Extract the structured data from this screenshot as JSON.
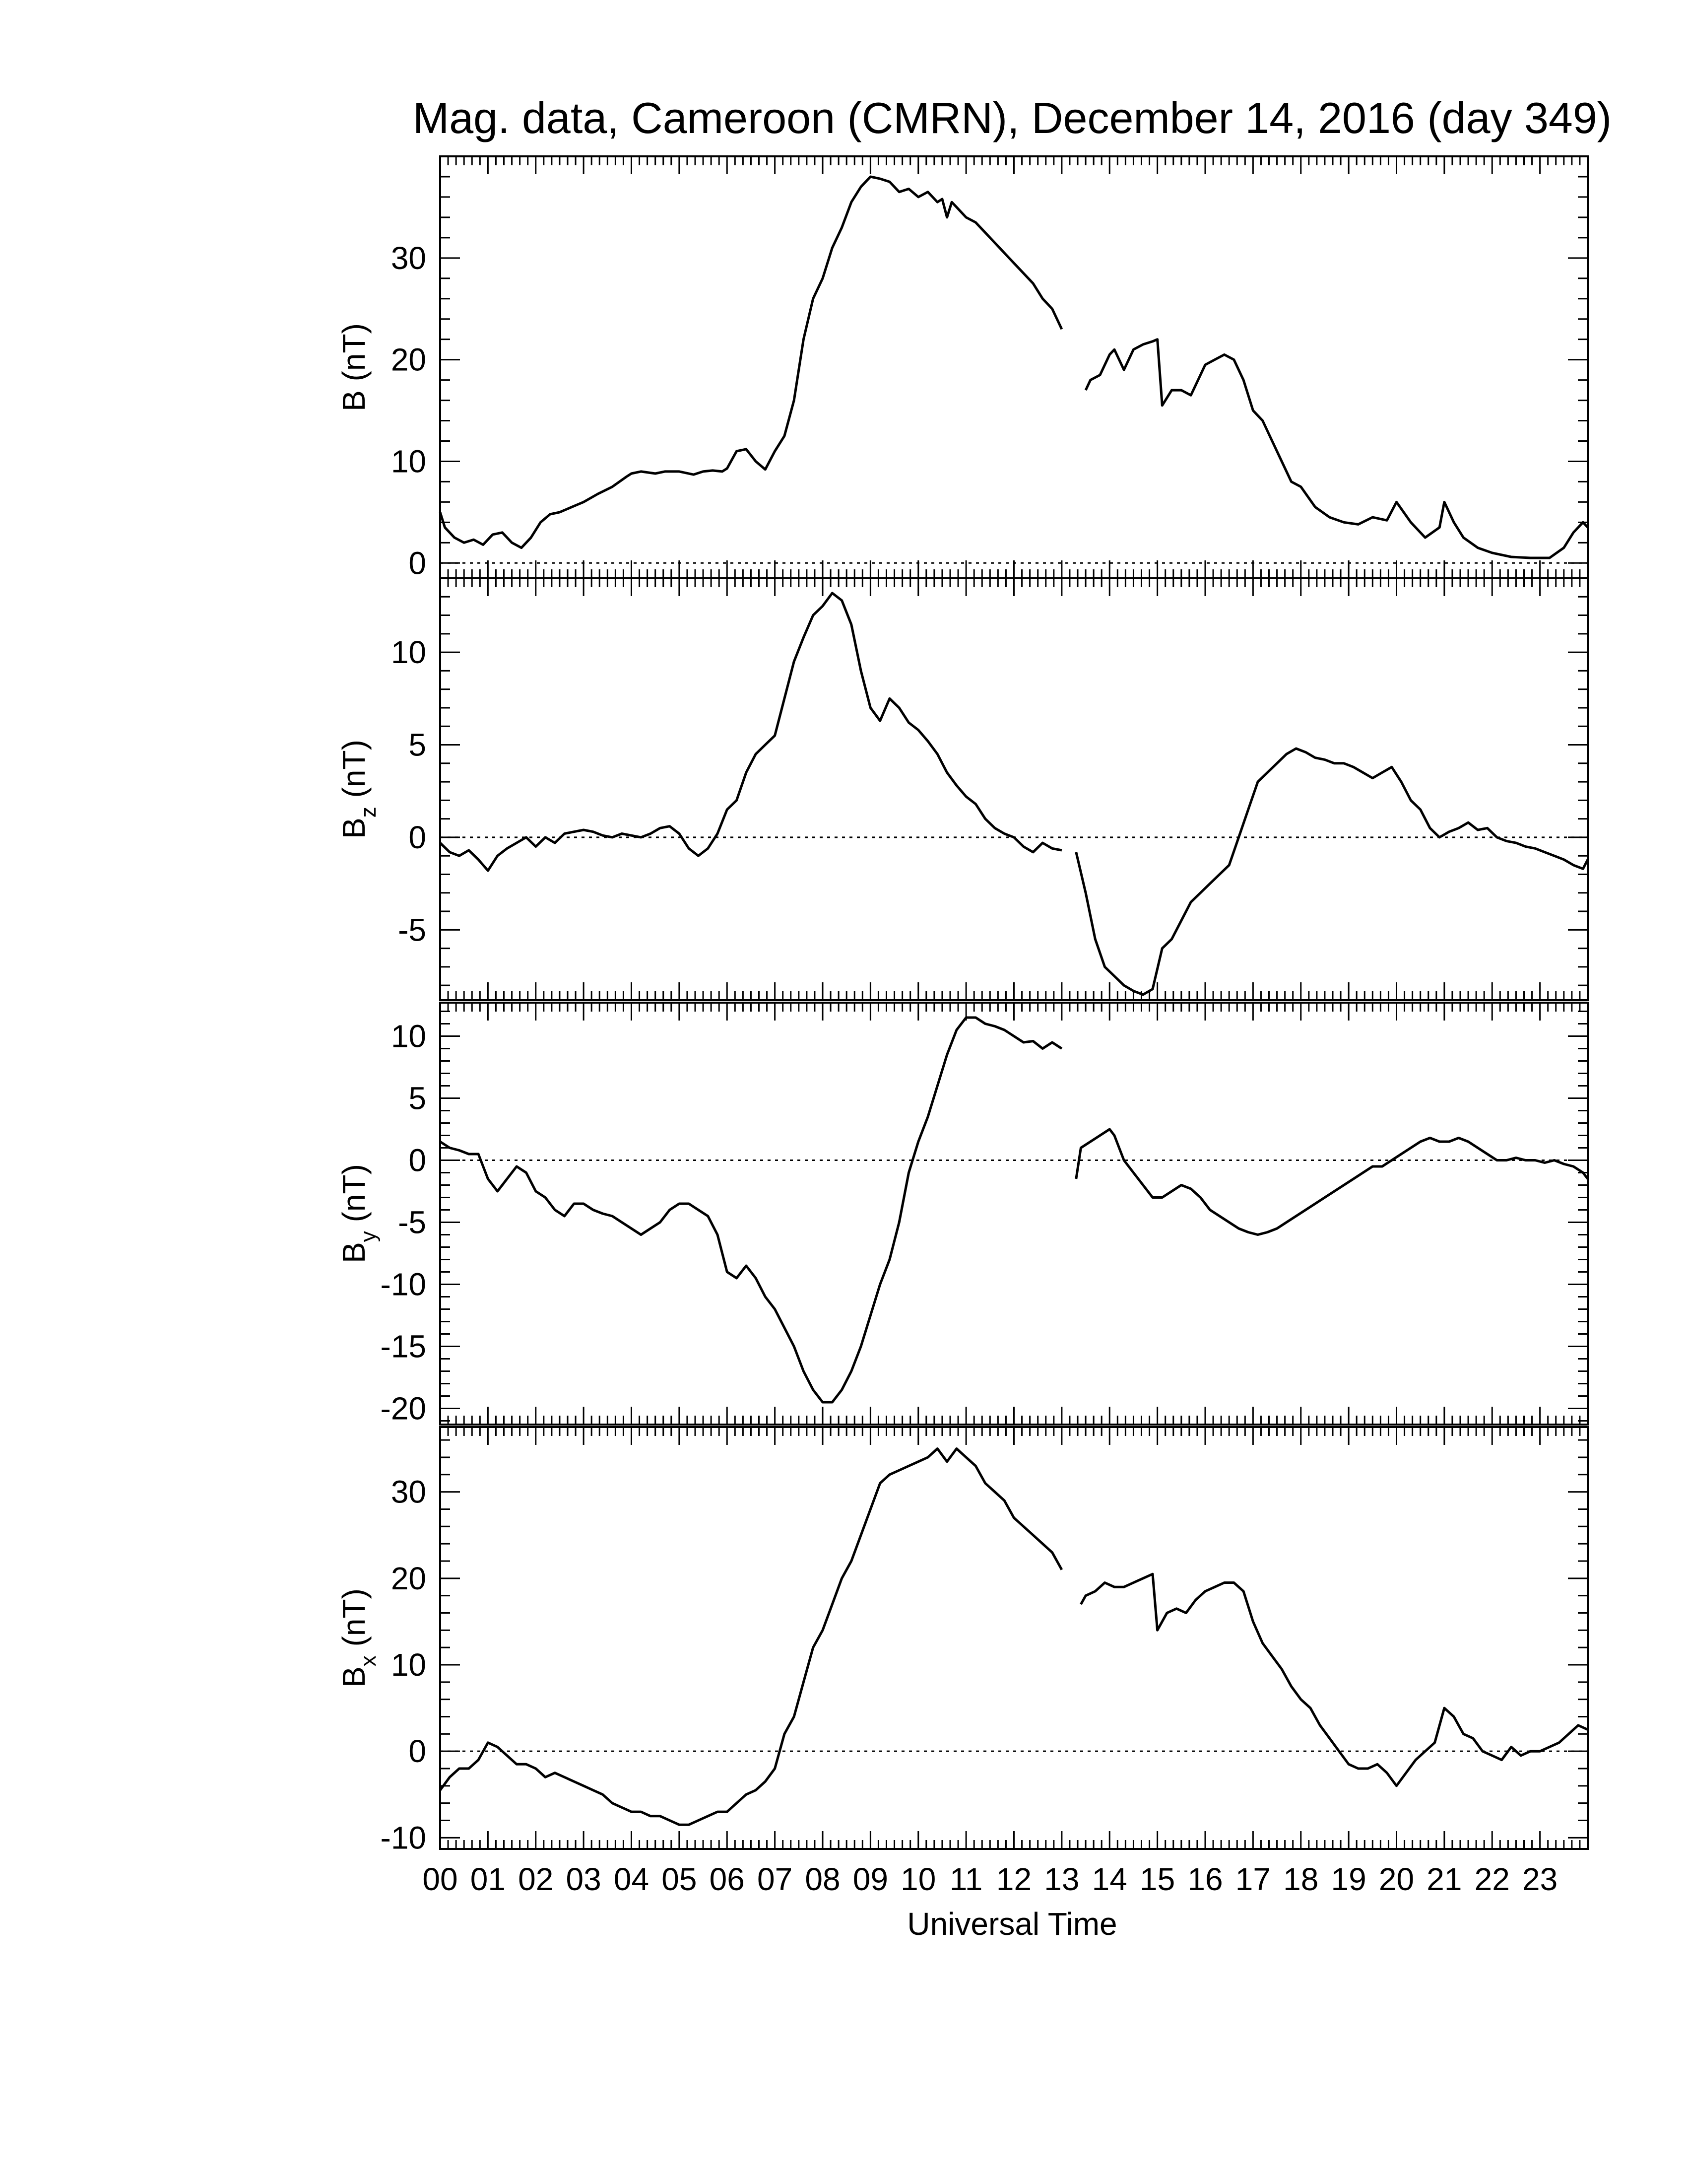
{
  "title": "Mag. data, Cameroon (CMRN), December 14, 2016 (day 349)",
  "xlabel": "Universal Time",
  "x_tick_labels": [
    "00",
    "01",
    "02",
    "03",
    "04",
    "05",
    "06",
    "07",
    "08",
    "09",
    "10",
    "11",
    "12",
    "13",
    "14",
    "15",
    "16",
    "17",
    "18",
    "19",
    "20",
    "21",
    "22",
    "23"
  ],
  "colors": {
    "line": "#000000",
    "zero_line": "#000000",
    "background": "#ffffff"
  },
  "chart_data": [
    {
      "type": "line",
      "panel": "B",
      "ylabel": "B (nT)",
      "ylabel_main": "B",
      "ylabel_sub": "",
      "ylabel_unit": " (nT)",
      "ylim": [
        -1.5,
        40
      ],
      "yticks": [
        0,
        10,
        20,
        30
      ],
      "xlim": [
        0,
        24
      ],
      "zero_line": true,
      "segments": [
        {
          "x": [
            0,
            0.1,
            0.3,
            0.5,
            0.7,
            0.9,
            1.1,
            1.3,
            1.5,
            1.7,
            1.9,
            2.1,
            2.3,
            2.5,
            2.8,
            3.0,
            3.3,
            3.6,
            3.9,
            4.0,
            4.2,
            4.5,
            4.7,
            5.0,
            5.3,
            5.5,
            5.7,
            5.9,
            6.0,
            6.2,
            6.4,
            6.6,
            6.8,
            7.0,
            7.2,
            7.4,
            7.6,
            7.8,
            8.0,
            8.2,
            8.4,
            8.6,
            8.8,
            9.0,
            9.2,
            9.4,
            9.6,
            9.8,
            10.0,
            10.2,
            10.4,
            10.5,
            10.6,
            10.7,
            10.8,
            11.0,
            11.2,
            11.4,
            11.6,
            11.8,
            12.0,
            12.2,
            12.4,
            12.6,
            12.8,
            13.0
          ],
          "y": [
            5,
            3.5,
            2.5,
            2.0,
            2.3,
            1.8,
            2.8,
            3.0,
            2.0,
            1.5,
            2.5,
            4.0,
            4.8,
            5.0,
            5.6,
            6.0,
            6.8,
            7.5,
            8.5,
            8.8,
            9.0,
            8.8,
            9.0,
            9.0,
            8.7,
            9.0,
            9.1,
            9.0,
            9.3,
            11.0,
            11.2,
            10.0,
            9.2,
            11.0,
            12.5,
            16.0,
            22.0,
            26.0,
            28.0,
            31.0,
            33.0,
            35.5,
            37.0,
            38.0,
            37.8,
            37.5,
            36.5,
            36.8,
            36.0,
            36.5,
            35.5,
            35.8,
            34.0,
            35.5,
            35.0,
            34.0,
            33.5,
            32.5,
            31.5,
            30.5,
            29.5,
            28.5,
            27.5,
            26.0,
            25.0,
            23.0
          ]
        },
        {
          "x": [
            13.5,
            13.6,
            13.8,
            14.0,
            14.1,
            14.3,
            14.5,
            14.7,
            14.9,
            15.0,
            15.1,
            15.3,
            15.5,
            15.7,
            15.9,
            16.0,
            16.2,
            16.4,
            16.6,
            16.8,
            17.0,
            17.2,
            17.4,
            17.6,
            17.8,
            18.0,
            18.3,
            18.6,
            18.9,
            19.2,
            19.5,
            19.8,
            20.0,
            20.3,
            20.6,
            20.9,
            21.0,
            21.2,
            21.4,
            21.7,
            22.0,
            22.4,
            22.8,
            23.2,
            23.5,
            23.7,
            23.9,
            24.0
          ],
          "y": [
            17.0,
            18.0,
            18.5,
            20.5,
            21.0,
            19.0,
            21.0,
            21.5,
            21.8,
            22.0,
            15.5,
            17.0,
            17.0,
            16.5,
            18.5,
            19.5,
            20.0,
            20.5,
            20.0,
            18.0,
            15.0,
            14.0,
            12.0,
            10.0,
            8.0,
            7.5,
            5.5,
            4.5,
            4.0,
            3.8,
            4.5,
            4.2,
            6.0,
            4.0,
            2.5,
            3.5,
            6.0,
            4.0,
            2.5,
            1.5,
            1.0,
            0.6,
            0.5,
            0.5,
            1.5,
            3.0,
            4.0,
            3.5
          ]
        }
      ]
    },
    {
      "type": "line",
      "panel": "Bz",
      "ylabel": "Bz (nT)",
      "ylabel_main": "B",
      "ylabel_sub": "z",
      "ylabel_unit": " (nT)",
      "ylim": [
        -8.8,
        14
      ],
      "yticks": [
        -5,
        0,
        5,
        10
      ],
      "xlim": [
        0,
        24
      ],
      "zero_line": true,
      "segments": [
        {
          "x": [
            0,
            0.2,
            0.4,
            0.6,
            0.8,
            1.0,
            1.2,
            1.4,
            1.6,
            1.8,
            2.0,
            2.2,
            2.4,
            2.6,
            2.8,
            3.0,
            3.2,
            3.4,
            3.6,
            3.8,
            4.0,
            4.2,
            4.4,
            4.6,
            4.8,
            5.0,
            5.2,
            5.4,
            5.6,
            5.8,
            6.0,
            6.2,
            6.4,
            6.6,
            6.8,
            7.0,
            7.2,
            7.4,
            7.6,
            7.8,
            8.0,
            8.2,
            8.4,
            8.6,
            8.8,
            9.0,
            9.2,
            9.4,
            9.6,
            9.8,
            10.0,
            10.2,
            10.4,
            10.6,
            10.8,
            11.0,
            11.2,
            11.4,
            11.6,
            11.8,
            12.0,
            12.2,
            12.4,
            12.6,
            12.8,
            13.0
          ],
          "y": [
            -0.3,
            -0.8,
            -1.0,
            -0.7,
            -1.2,
            -1.8,
            -1.0,
            -0.6,
            -0.3,
            0,
            -0.5,
            0,
            -0.3,
            0.2,
            0.3,
            0.4,
            0.3,
            0.1,
            0,
            0.2,
            0.1,
            0,
            0.2,
            0.5,
            0.6,
            0.2,
            -0.6,
            -1.0,
            -0.6,
            0.2,
            1.5,
            2.0,
            3.5,
            4.5,
            5.0,
            5.5,
            7.5,
            9.5,
            10.8,
            12.0,
            12.5,
            13.2,
            12.8,
            11.5,
            9.0,
            7.0,
            6.3,
            7.5,
            7.0,
            6.2,
            5.8,
            5.2,
            4.5,
            3.5,
            2.8,
            2.2,
            1.8,
            1.0,
            0.5,
            0.2,
            0,
            -0.5,
            -0.8,
            -0.3,
            -0.6,
            -0.7
          ]
        },
        {
          "x": [
            13.3,
            13.5,
            13.7,
            13.9,
            14.1,
            14.3,
            14.5,
            14.7,
            14.9,
            15.1,
            15.3,
            15.5,
            15.7,
            15.9,
            16.1,
            16.3,
            16.5,
            16.7,
            16.9,
            17.1,
            17.3,
            17.5,
            17.7,
            17.9,
            18.1,
            18.3,
            18.5,
            18.7,
            18.9,
            19.1,
            19.3,
            19.5,
            19.7,
            19.9,
            20.1,
            20.3,
            20.5,
            20.7,
            20.9,
            21.1,
            21.3,
            21.5,
            21.7,
            21.9,
            22.1,
            22.3,
            22.5,
            22.7,
            22.9,
            23.1,
            23.3,
            23.5,
            23.7,
            23.9,
            24.0
          ],
          "y": [
            -0.8,
            -3.0,
            -5.5,
            -7.0,
            -7.5,
            -8.0,
            -8.3,
            -8.5,
            -8.2,
            -6.0,
            -5.5,
            -4.5,
            -3.5,
            -3.0,
            -2.5,
            -2.0,
            -1.5,
            0,
            1.5,
            3.0,
            3.5,
            4.0,
            4.5,
            4.8,
            4.6,
            4.3,
            4.2,
            4.0,
            4.0,
            3.8,
            3.5,
            3.2,
            3.5,
            3.8,
            3.0,
            2.0,
            1.5,
            0.5,
            0,
            0.3,
            0.5,
            0.8,
            0.4,
            0.5,
            0,
            -0.2,
            -0.3,
            -0.5,
            -0.6,
            -0.8,
            -1.0,
            -1.2,
            -1.5,
            -1.7,
            -1.2
          ]
        }
      ]
    },
    {
      "type": "line",
      "panel": "By",
      "ylabel": "By (nT)",
      "ylabel_main": "B",
      "ylabel_sub": "y",
      "ylabel_unit": " (nT)",
      "ylim": [
        -21.3,
        12.7
      ],
      "yticks": [
        -20,
        -15,
        -10,
        -5,
        0,
        5,
        10
      ],
      "xlim": [
        0,
        24
      ],
      "zero_line": true,
      "segments": [
        {
          "x": [
            0,
            0.2,
            0.4,
            0.6,
            0.8,
            1.0,
            1.2,
            1.4,
            1.6,
            1.8,
            2.0,
            2.2,
            2.4,
            2.6,
            2.8,
            3.0,
            3.2,
            3.4,
            3.6,
            3.8,
            4.0,
            4.2,
            4.4,
            4.6,
            4.8,
            5.0,
            5.2,
            5.4,
            5.6,
            5.8,
            6.0,
            6.2,
            6.4,
            6.6,
            6.8,
            7.0,
            7.2,
            7.4,
            7.6,
            7.8,
            8.0,
            8.2,
            8.4,
            8.6,
            8.8,
            9.0,
            9.2,
            9.4,
            9.6,
            9.8,
            10.0,
            10.2,
            10.4,
            10.6,
            10.8,
            11.0,
            11.2,
            11.4,
            11.6,
            11.8,
            12.0,
            12.2,
            12.4,
            12.6,
            12.8,
            13.0
          ],
          "y": [
            1.5,
            1.0,
            0.8,
            0.5,
            0.5,
            -1.5,
            -2.5,
            -1.5,
            -0.5,
            -1.0,
            -2.5,
            -3.0,
            -4.0,
            -4.5,
            -3.5,
            -3.5,
            -4.0,
            -4.3,
            -4.5,
            -5.0,
            -5.5,
            -6.0,
            -5.5,
            -5.0,
            -4.0,
            -3.5,
            -3.5,
            -4.0,
            -4.5,
            -6.0,
            -9.0,
            -9.5,
            -8.5,
            -9.5,
            -11.0,
            -12.0,
            -13.5,
            -15.0,
            -17.0,
            -18.5,
            -19.5,
            -19.5,
            -18.5,
            -17.0,
            -15.0,
            -12.5,
            -10.0,
            -8.0,
            -5.0,
            -1.0,
            1.5,
            3.5,
            6.0,
            8.5,
            10.5,
            11.5,
            11.5,
            11.0,
            10.8,
            10.5,
            10.0,
            9.5,
            9.6,
            9.0,
            9.5,
            9.0
          ]
        },
        {
          "x": [
            13.3,
            13.4,
            13.6,
            13.8,
            14.0,
            14.1,
            14.3,
            14.5,
            14.7,
            14.9,
            15.1,
            15.3,
            15.5,
            15.7,
            15.9,
            16.1,
            16.3,
            16.5,
            16.7,
            16.9,
            17.1,
            17.3,
            17.5,
            17.7,
            17.9,
            18.1,
            18.3,
            18.5,
            18.7,
            18.9,
            19.1,
            19.3,
            19.5,
            19.7,
            19.9,
            20.1,
            20.3,
            20.5,
            20.7,
            20.9,
            21.1,
            21.3,
            21.5,
            21.7,
            21.9,
            22.1,
            22.3,
            22.5,
            22.7,
            22.9,
            23.1,
            23.3,
            23.5,
            23.7,
            23.9,
            24.0
          ],
          "y": [
            -1.5,
            1.0,
            1.5,
            2.0,
            2.5,
            2.0,
            0,
            -1.0,
            -2.0,
            -3.0,
            -3.0,
            -2.5,
            -2.0,
            -2.3,
            -3.0,
            -4.0,
            -4.5,
            -5.0,
            -5.5,
            -5.8,
            -6.0,
            -5.8,
            -5.5,
            -5.0,
            -4.5,
            -4.0,
            -3.5,
            -3.0,
            -2.5,
            -2.0,
            -1.5,
            -1.0,
            -0.5,
            -0.5,
            0,
            0.5,
            1.0,
            1.5,
            1.8,
            1.5,
            1.5,
            1.8,
            1.5,
            1.0,
            0.5,
            0,
            0,
            0.2,
            0,
            0,
            -0.2,
            0,
            -0.3,
            -0.5,
            -1.0,
            -1.5
          ]
        }
      ]
    },
    {
      "type": "line",
      "panel": "Bx",
      "ylabel": "Bx (nT)",
      "ylabel_main": "B",
      "ylabel_sub": "x",
      "ylabel_unit": " (nT)",
      "ylim": [
        -11.3,
        37.5
      ],
      "yticks": [
        -10,
        0,
        10,
        20,
        30
      ],
      "xlim": [
        0,
        24
      ],
      "zero_line": true,
      "segments": [
        {
          "x": [
            0,
            0.2,
            0.4,
            0.6,
            0.8,
            1.0,
            1.2,
            1.4,
            1.6,
            1.8,
            2.0,
            2.2,
            2.4,
            2.6,
            2.8,
            3.0,
            3.2,
            3.4,
            3.6,
            3.8,
            4.0,
            4.2,
            4.4,
            4.6,
            4.8,
            5.0,
            5.2,
            5.4,
            5.6,
            5.8,
            6.0,
            6.2,
            6.4,
            6.6,
            6.8,
            7.0,
            7.2,
            7.4,
            7.6,
            7.8,
            8.0,
            8.2,
            8.4,
            8.6,
            8.8,
            9.0,
            9.2,
            9.4,
            9.6,
            9.8,
            10.0,
            10.2,
            10.4,
            10.6,
            10.8,
            11.0,
            11.2,
            11.4,
            11.6,
            11.8,
            12.0,
            12.2,
            12.4,
            12.6,
            12.8,
            13.0
          ],
          "y": [
            -4.5,
            -3.0,
            -2.0,
            -2.0,
            -1.0,
            1.0,
            0.5,
            -0.5,
            -1.5,
            -1.5,
            -2.0,
            -3.0,
            -2.5,
            -3.0,
            -3.5,
            -4.0,
            -4.5,
            -5.0,
            -6.0,
            -6.5,
            -7.0,
            -7.0,
            -7.5,
            -7.5,
            -8.0,
            -8.5,
            -8.5,
            -8.0,
            -7.5,
            -7.0,
            -7.0,
            -6.0,
            -5.0,
            -4.5,
            -3.5,
            -2.0,
            2.0,
            4.0,
            8.0,
            12.0,
            14.0,
            17.0,
            20.0,
            22.0,
            25.0,
            28.0,
            31.0,
            32.0,
            32.5,
            33.0,
            33.5,
            34.0,
            35.0,
            33.5,
            35.0,
            34.0,
            33.0,
            31.0,
            30.0,
            29.0,
            27.0,
            26.0,
            25.0,
            24.0,
            23.0,
            21.0
          ]
        },
        {
          "x": [
            13.4,
            13.5,
            13.7,
            13.9,
            14.1,
            14.3,
            14.5,
            14.7,
            14.9,
            15.0,
            15.2,
            15.4,
            15.6,
            15.8,
            16.0,
            16.2,
            16.4,
            16.6,
            16.8,
            17.0,
            17.2,
            17.4,
            17.6,
            17.8,
            18.0,
            18.2,
            18.4,
            18.6,
            18.8,
            19.0,
            19.2,
            19.4,
            19.6,
            19.8,
            20.0,
            20.2,
            20.4,
            20.6,
            20.8,
            21.0,
            21.2,
            21.4,
            21.6,
            21.8,
            22.0,
            22.2,
            22.4,
            22.6,
            22.8,
            23.0,
            23.2,
            23.4,
            23.6,
            23.8,
            24.0
          ],
          "y": [
            17.0,
            18.0,
            18.5,
            19.5,
            19.0,
            19.0,
            19.5,
            20.0,
            20.5,
            14.0,
            16.0,
            16.5,
            16.0,
            17.5,
            18.5,
            19.0,
            19.5,
            19.5,
            18.5,
            15.0,
            12.5,
            11.0,
            9.5,
            7.5,
            6.0,
            5.0,
            3.0,
            1.5,
            0,
            -1.5,
            -2.0,
            -2.0,
            -1.5,
            -2.5,
            -4.0,
            -2.5,
            -1.0,
            0,
            1.0,
            5.0,
            4.0,
            2.0,
            1.5,
            0,
            -0.5,
            -1.0,
            0.5,
            -0.5,
            0,
            0,
            0.5,
            1.0,
            2.0,
            3.0,
            2.5
          ]
        }
      ]
    }
  ]
}
